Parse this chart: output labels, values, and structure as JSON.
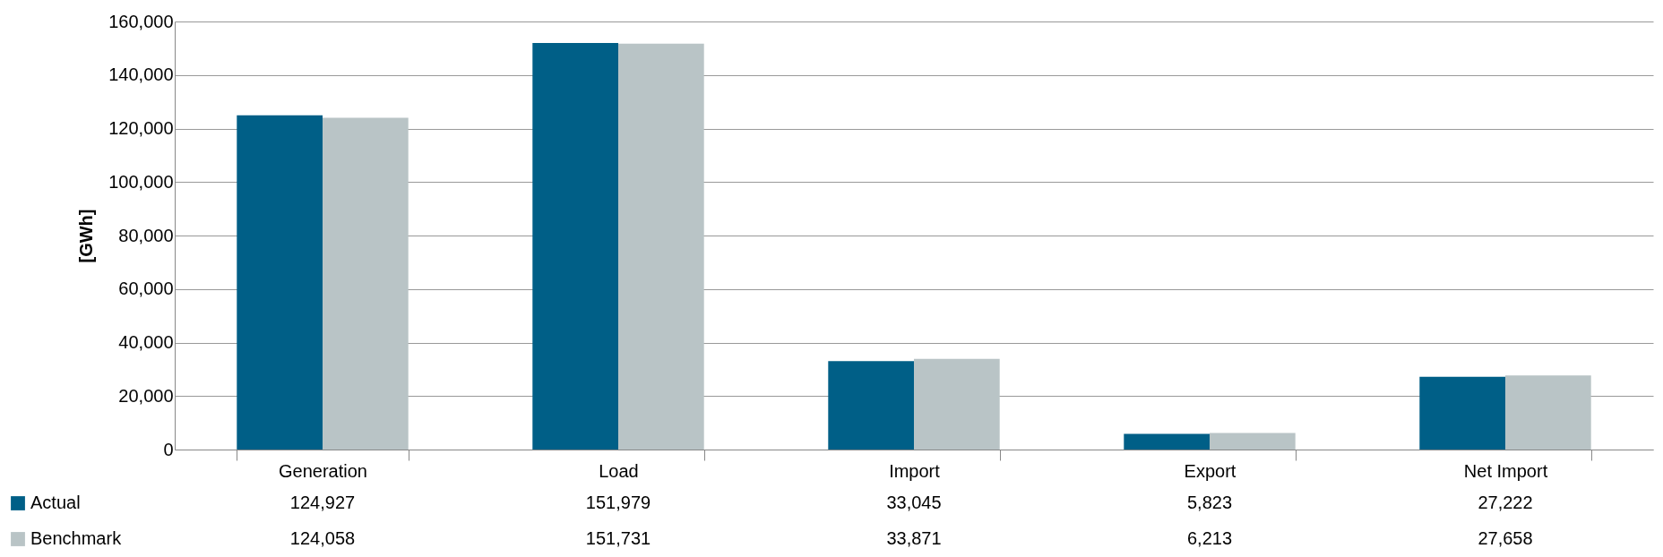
{
  "chart_data": {
    "type": "bar",
    "ylabel": "[GWh]",
    "categories": [
      "Generation",
      "Load",
      "Import",
      "Export",
      "Net Import"
    ],
    "series": [
      {
        "name": "Actual",
        "color": "#005f87",
        "values": [
          124927,
          151979,
          33045,
          5823,
          27222
        ],
        "value_labels": [
          "124,927",
          "151,979",
          "33,045",
          "5,823",
          "27,222"
        ]
      },
      {
        "name": "Benchmark",
        "color": "#b9c4c6",
        "values": [
          124058,
          151731,
          33871,
          6213,
          27658
        ],
        "value_labels": [
          "124,058",
          "151,731",
          "33,871",
          "6,213",
          "27,658"
        ]
      }
    ],
    "ylim": [
      0,
      160000
    ],
    "yticks": [
      0,
      {
        "value": 20000,
        "label": "20,000"
      },
      {
        "value": 40000,
        "label": "40,000"
      },
      {
        "value": 60000,
        "label": "60,000"
      },
      {
        "value": 80000,
        "label": "80,000"
      },
      {
        "value": 100000,
        "label": "100,000"
      },
      {
        "value": 120000,
        "label": "120,000"
      },
      {
        "value": 140000,
        "label": "140,000"
      },
      {
        "value": 160000,
        "label": "160,000"
      }
    ],
    "grid": "y",
    "legend": "bottom left"
  }
}
